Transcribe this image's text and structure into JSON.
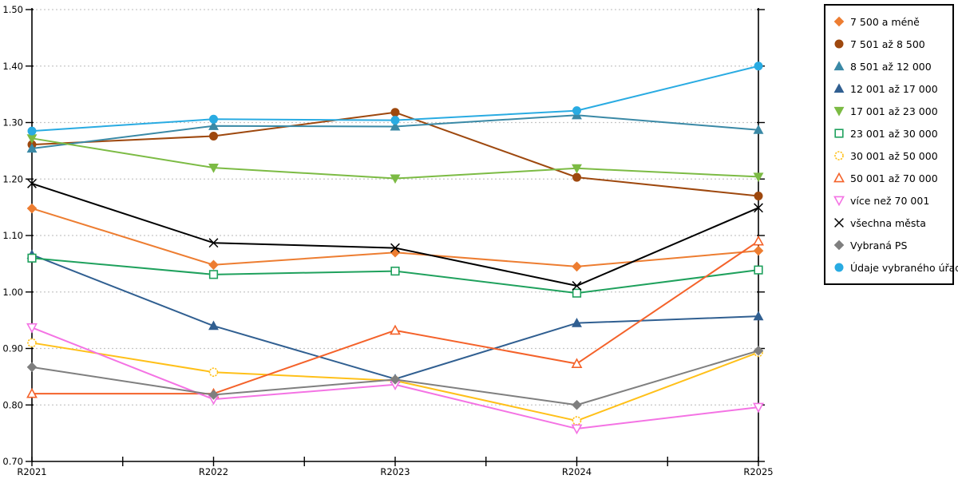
{
  "chart_data": {
    "type": "line",
    "title": "",
    "xlabel": "",
    "ylabel": "",
    "x": [
      "R2021",
      "R2022",
      "R2023",
      "R2024",
      "R2025"
    ],
    "ylim": [
      0.7,
      1.5
    ],
    "ytick_step": 0.1,
    "ytick_labels": [
      "0.70",
      "0.80",
      "0.90",
      "1.00",
      "1.10",
      "1.20",
      "1.30",
      "1.40",
      "1.50"
    ],
    "grid": true,
    "grid_style": "dotted",
    "legend_position": "right-outside",
    "series": [
      {
        "name": "7 500 a méně",
        "slug": "size-7500-and-less",
        "color": "#ED7D31",
        "marker": "diamond",
        "fill": "solid",
        "values": [
          1.148,
          1.048,
          1.07,
          1.045,
          1.073
        ]
      },
      {
        "name": "7 501 až 8 500",
        "slug": "size-7501-8500",
        "color": "#9E480E",
        "marker": "circle",
        "fill": "solid",
        "values": [
          1.261,
          1.276,
          1.318,
          1.203,
          1.17
        ]
      },
      {
        "name": "8 501 až 12 000",
        "slug": "size-8501-12000",
        "color": "#3A89A6",
        "marker": "triangle-up",
        "fill": "solid",
        "values": [
          1.254,
          1.294,
          1.293,
          1.313,
          1.287
        ]
      },
      {
        "name": "12 001 až 17 000",
        "slug": "size-12001-17000",
        "color": "#305F91",
        "marker": "triangle-up",
        "fill": "solid",
        "values": [
          1.066,
          0.94,
          0.846,
          0.945,
          0.957
        ]
      },
      {
        "name": "17 001 až 23 000",
        "slug": "size-17001-23000",
        "color": "#7CBB44",
        "marker": "triangle-down",
        "fill": "solid",
        "values": [
          1.272,
          1.22,
          1.201,
          1.219,
          1.204
        ]
      },
      {
        "name": "23 001 až 30 000",
        "slug": "size-23001-30000",
        "color": "#1FA15D",
        "marker": "square",
        "fill": "open",
        "values": [
          1.06,
          1.031,
          1.037,
          0.998,
          1.039
        ]
      },
      {
        "name": "30 001 až 50 000",
        "slug": "size-30001-50000",
        "color": "#FFC019",
        "marker": "circle",
        "fill": "open",
        "dashed_marker": true,
        "values": [
          0.91,
          0.858,
          0.843,
          0.772,
          0.893
        ]
      },
      {
        "name": "50 001 až 70 000",
        "slug": "size-50001-70000",
        "color": "#F4622A",
        "marker": "triangle-up",
        "fill": "open",
        "values": [
          0.82,
          0.82,
          0.932,
          0.873,
          1.09
        ]
      },
      {
        "name": "více než 70 001",
        "slug": "size-more-than-70001",
        "color": "#F473E4",
        "marker": "triangle-down",
        "fill": "open",
        "values": [
          0.937,
          0.81,
          0.836,
          0.758,
          0.796
        ]
      },
      {
        "name": "všechna města",
        "slug": "all-cities",
        "color": "#000000",
        "marker": "x",
        "fill": "none",
        "values": [
          1.192,
          1.087,
          1.078,
          1.011,
          1.149
        ]
      },
      {
        "name": "Vybraná PS",
        "slug": "selected-ps",
        "color": "#7F7F7F",
        "marker": "diamond",
        "fill": "solid",
        "values": [
          0.867,
          0.818,
          0.845,
          0.8,
          0.896
        ]
      },
      {
        "name": "Údaje vybraného úřadu",
        "slug": "selected-office-data",
        "color": "#29ABE2",
        "marker": "circle",
        "fill": "solid",
        "values": [
          1.285,
          1.306,
          1.304,
          1.321,
          1.4
        ]
      }
    ]
  },
  "colors": {
    "axis": "#000000",
    "gridline": "#c6c6c6",
    "background": "#ffffff",
    "tick_label": "#000000"
  }
}
